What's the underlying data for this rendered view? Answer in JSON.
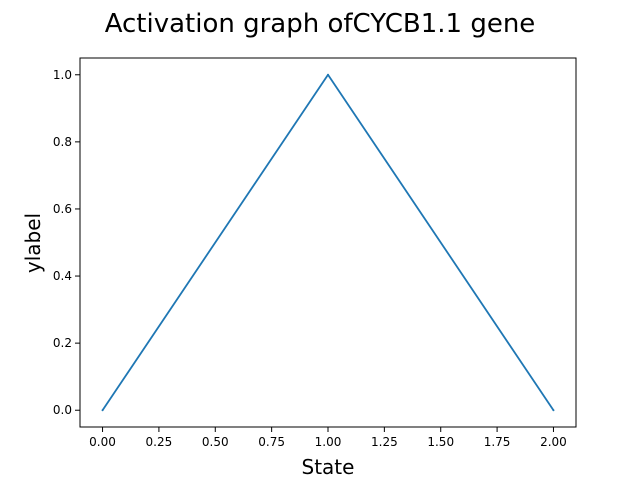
{
  "chart_data": {
    "type": "line",
    "title": "Activation graph ofCYCB1.1 gene",
    "xlabel": "State",
    "ylabel": "ylabel",
    "x": [
      0,
      1,
      2
    ],
    "series": [
      {
        "values": [
          0,
          1,
          0
        ],
        "color": "#1f77b4"
      }
    ],
    "xlim": [
      -0.1,
      2.1
    ],
    "ylim": [
      -0.05,
      1.05
    ],
    "xticks": [
      0.0,
      0.25,
      0.5,
      0.75,
      1.0,
      1.25,
      1.5,
      1.75,
      2.0
    ],
    "xtick_labels": [
      "0.00",
      "0.25",
      "0.50",
      "0.75",
      "1.00",
      "1.25",
      "1.50",
      "1.75",
      "2.00"
    ],
    "yticks": [
      0.0,
      0.2,
      0.4,
      0.6,
      0.8,
      1.0
    ],
    "ytick_labels": [
      "0.0",
      "0.2",
      "0.4",
      "0.6",
      "0.8",
      "1.0"
    ],
    "grid": false,
    "legend": false
  }
}
